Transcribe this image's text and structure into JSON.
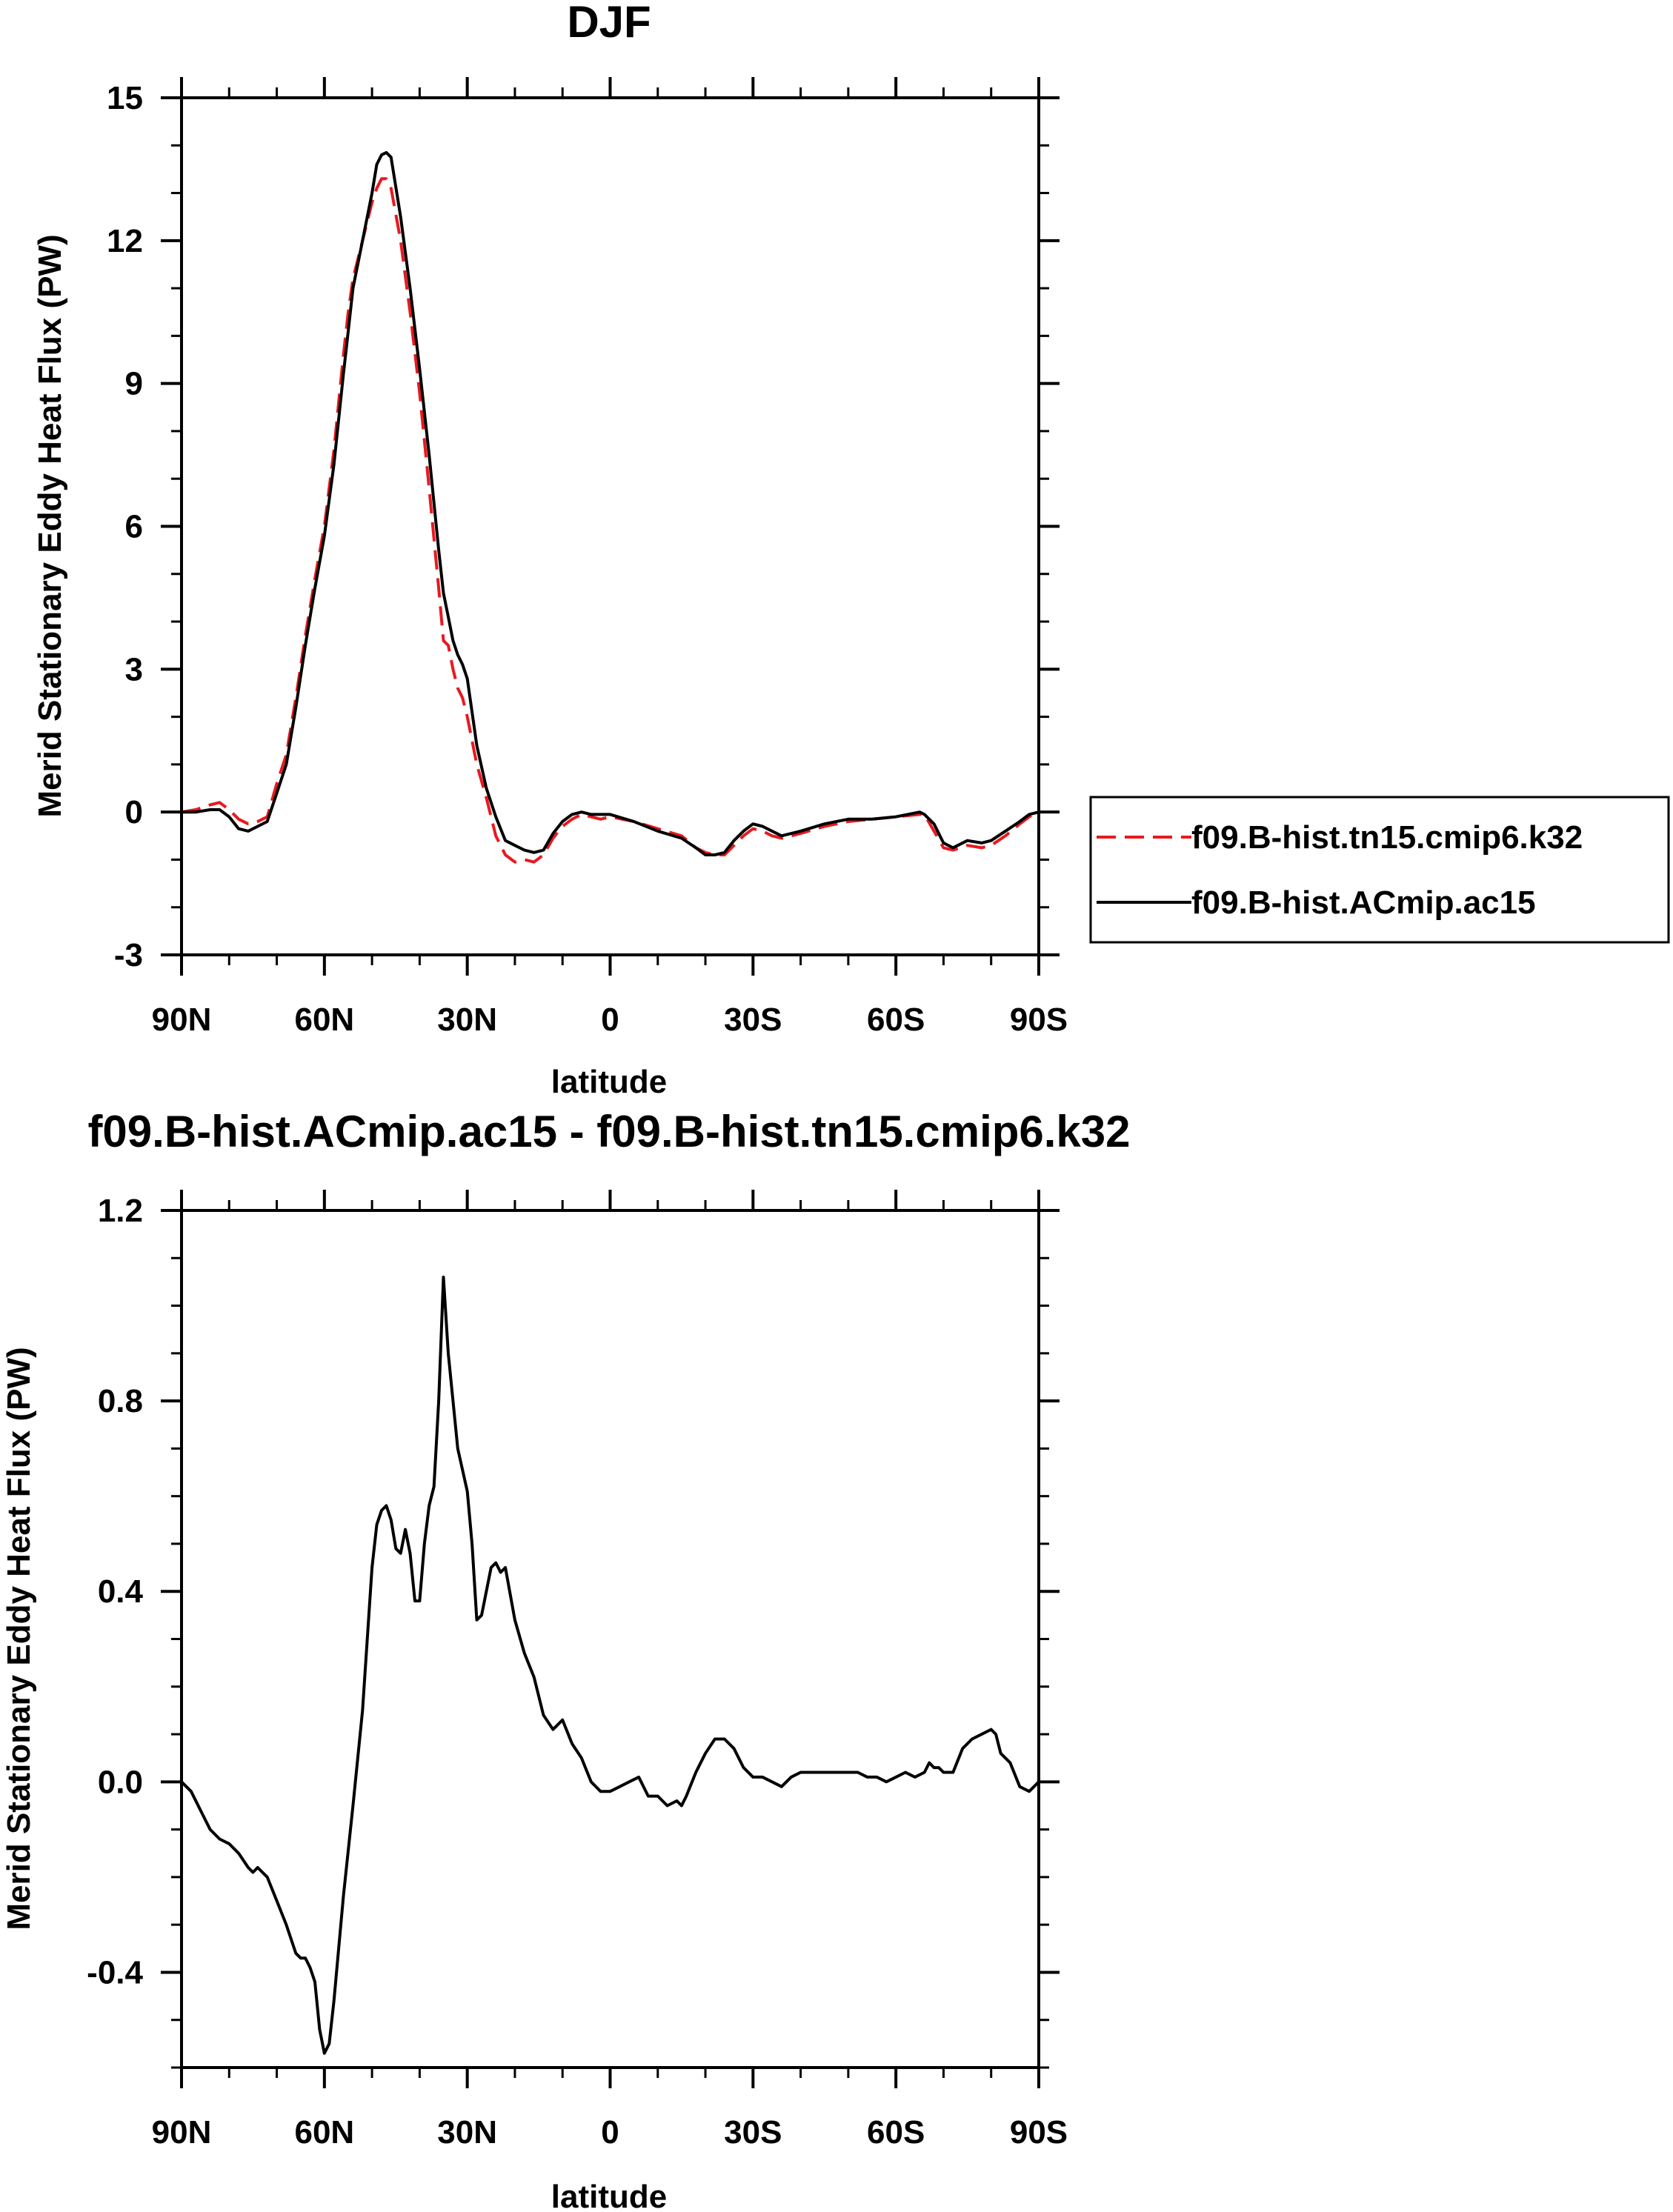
{
  "chart_data": [
    {
      "type": "line",
      "title": "DJF",
      "xlabel": "latitude",
      "ylabel": "Merid Stationary Eddy Heat Flux (PW)",
      "xlim": [
        90,
        -90
      ],
      "ylim": [
        -3,
        15
      ],
      "yticks": [
        -3,
        0,
        3,
        6,
        9,
        12,
        15
      ],
      "ytick_labels": [
        "-3",
        "0",
        "3",
        "6",
        "9",
        "12",
        "15"
      ],
      "xticks": [
        90,
        60,
        30,
        0,
        -30,
        -60,
        -90
      ],
      "xtick_labels": [
        "90N",
        "60N",
        "30N",
        "0",
        "30S",
        "60S",
        "90S"
      ],
      "grid": false,
      "legend_position": "right",
      "x_units": "latitude in degrees (positive = N, negative = S)",
      "series": [
        {
          "name": "f09.B-hist.tn15.cmip6.k32",
          "color": "#e8191e",
          "style": "dashed",
          "x": [
            90,
            87,
            84,
            82,
            80,
            78,
            76,
            74,
            72,
            70,
            68,
            66,
            64,
            62,
            60,
            58,
            56,
            55,
            54,
            52,
            50,
            49,
            48,
            47,
            46,
            44,
            42,
            40,
            38,
            36,
            35,
            34,
            33,
            32,
            31,
            30,
            28,
            26,
            24,
            22,
            20,
            18,
            16,
            14,
            12,
            10,
            8,
            6,
            4,
            2,
            0,
            -5,
            -10,
            -15,
            -18,
            -20,
            -22,
            -24,
            -26,
            -28,
            -30,
            -32,
            -34,
            -36,
            -40,
            -45,
            -50,
            -55,
            -60,
            -65,
            -66,
            -68,
            -70,
            -72,
            -75,
            -78,
            -80,
            -83,
            -86,
            -88,
            -90
          ],
          "y": [
            0.0,
            0.05,
            0.15,
            0.2,
            0.05,
            -0.15,
            -0.25,
            -0.2,
            -0.1,
            0.6,
            1.2,
            2.4,
            3.7,
            4.9,
            6.0,
            7.6,
            9.6,
            10.5,
            11.2,
            12.0,
            12.8,
            13.1,
            13.3,
            13.3,
            13.1,
            12.0,
            10.5,
            8.8,
            6.8,
            4.7,
            3.6,
            3.5,
            3.0,
            2.6,
            2.4,
            2.0,
            1.0,
            0.3,
            -0.5,
            -0.9,
            -1.05,
            -1.0,
            -1.05,
            -0.9,
            -0.55,
            -0.3,
            -0.15,
            -0.05,
            -0.1,
            -0.15,
            -0.1,
            -0.2,
            -0.35,
            -0.5,
            -0.75,
            -0.85,
            -0.9,
            -0.9,
            -0.7,
            -0.5,
            -0.35,
            -0.4,
            -0.5,
            -0.55,
            -0.45,
            -0.3,
            -0.2,
            -0.15,
            -0.1,
            -0.05,
            -0.05,
            -0.4,
            -0.75,
            -0.8,
            -0.7,
            -0.75,
            -0.7,
            -0.5,
            -0.25,
            -0.1,
            0.0
          ]
        },
        {
          "name": "f09.B-hist.ACmip.ac15",
          "color": "#000000",
          "style": "solid",
          "x": [
            90,
            87,
            84,
            82,
            80,
            78,
            76,
            74,
            72,
            70,
            68,
            66,
            64,
            62,
            60,
            58,
            56,
            55,
            54,
            52,
            50,
            49,
            48,
            47,
            46,
            44,
            42,
            40,
            38,
            36,
            35,
            34,
            33,
            32,
            31,
            30,
            28,
            26,
            24,
            22,
            20,
            18,
            16,
            14,
            12,
            10,
            8,
            6,
            4,
            2,
            0,
            -5,
            -10,
            -15,
            -18,
            -20,
            -22,
            -24,
            -26,
            -28,
            -30,
            -32,
            -34,
            -36,
            -40,
            -45,
            -50,
            -55,
            -60,
            -65,
            -66,
            -68,
            -70,
            -72,
            -75,
            -78,
            -80,
            -83,
            -86,
            -88,
            -90
          ],
          "y": [
            0.0,
            0.0,
            0.05,
            0.05,
            -0.1,
            -0.35,
            -0.4,
            -0.3,
            -0.2,
            0.4,
            1.0,
            2.2,
            3.5,
            4.7,
            5.8,
            7.3,
            9.2,
            10.1,
            11.0,
            12.0,
            13.0,
            13.6,
            13.8,
            13.85,
            13.75,
            12.5,
            11.0,
            9.3,
            7.5,
            5.5,
            4.6,
            4.1,
            3.6,
            3.3,
            3.1,
            2.8,
            1.4,
            0.5,
            -0.1,
            -0.6,
            -0.7,
            -0.8,
            -0.85,
            -0.8,
            -0.45,
            -0.2,
            -0.05,
            0.0,
            -0.05,
            -0.05,
            -0.05,
            -0.2,
            -0.4,
            -0.55,
            -0.75,
            -0.9,
            -0.9,
            -0.85,
            -0.6,
            -0.4,
            -0.25,
            -0.3,
            -0.4,
            -0.5,
            -0.4,
            -0.25,
            -0.15,
            -0.15,
            -0.1,
            0.0,
            -0.05,
            -0.25,
            -0.65,
            -0.75,
            -0.6,
            -0.65,
            -0.6,
            -0.4,
            -0.2,
            -0.05,
            0.0
          ]
        }
      ]
    },
    {
      "type": "line",
      "title": "f09.B-hist.ACmip.ac15 - f09.B-hist.tn15.cmip6.k32",
      "xlabel": "latitude",
      "ylabel": "Merid Stationary Eddy Heat Flux (PW)",
      "xlim": [
        90,
        -90
      ],
      "ylim": [
        -0.6,
        1.2
      ],
      "yticks": [
        -0.4,
        0.0,
        0.4,
        0.8,
        1.2
      ],
      "ytick_labels": [
        "-0.4",
        "0.0",
        "0.4",
        "0.8",
        "1.2"
      ],
      "xticks": [
        90,
        60,
        30,
        0,
        -30,
        -60,
        -90
      ],
      "xtick_labels": [
        "90N",
        "60N",
        "30N",
        "0",
        "30S",
        "60S",
        "90S"
      ],
      "grid": false,
      "x_units": "latitude in degrees (positive = N, negative = S)",
      "series": [
        {
          "color": "#000000",
          "style": "solid",
          "x": [
            90,
            88,
            86,
            84,
            82,
            80,
            78,
            76,
            75,
            74,
            72,
            70,
            68,
            66,
            65,
            64,
            63,
            62,
            61,
            60,
            59,
            58,
            56,
            54,
            52,
            50,
            49,
            48,
            47,
            46,
            45,
            44,
            43,
            42,
            41,
            40,
            39,
            38,
            37,
            36,
            35,
            34,
            33,
            32,
            30,
            29,
            28,
            27,
            26,
            25,
            24,
            23,
            22,
            20,
            18,
            16,
            14,
            12,
            10,
            8,
            6,
            4,
            2,
            0,
            -2,
            -4,
            -6,
            -8,
            -10,
            -12,
            -14,
            -15,
            -16,
            -18,
            -20,
            -22,
            -24,
            -26,
            -28,
            -30,
            -32,
            -34,
            -36,
            -38,
            -40,
            -42,
            -44,
            -46,
            -48,
            -50,
            -52,
            -54,
            -56,
            -58,
            -60,
            -62,
            -64,
            -66,
            -67,
            -68,
            -69,
            -70,
            -72,
            -74,
            -76,
            -78,
            -80,
            -81,
            -82,
            -84,
            -86,
            -88,
            -90
          ],
          "y": [
            0.0,
            -0.02,
            -0.06,
            -0.1,
            -0.12,
            -0.13,
            -0.15,
            -0.18,
            -0.19,
            -0.18,
            -0.2,
            -0.25,
            -0.3,
            -0.36,
            -0.37,
            -0.37,
            -0.39,
            -0.42,
            -0.52,
            -0.57,
            -0.55,
            -0.46,
            -0.24,
            -0.05,
            0.15,
            0.45,
            0.54,
            0.57,
            0.58,
            0.55,
            0.49,
            0.48,
            0.53,
            0.48,
            0.38,
            0.38,
            0.5,
            0.58,
            0.62,
            0.8,
            1.06,
            0.9,
            0.8,
            0.7,
            0.61,
            0.5,
            0.34,
            0.35,
            0.4,
            0.45,
            0.46,
            0.44,
            0.45,
            0.34,
            0.27,
            0.22,
            0.14,
            0.11,
            0.13,
            0.08,
            0.05,
            0.0,
            -0.02,
            -0.02,
            -0.01,
            0.0,
            0.01,
            -0.03,
            -0.03,
            -0.05,
            -0.04,
            -0.05,
            -0.03,
            0.02,
            0.06,
            0.09,
            0.09,
            0.07,
            0.03,
            0.01,
            0.01,
            0.0,
            -0.01,
            0.01,
            0.02,
            0.02,
            0.02,
            0.02,
            0.02,
            0.02,
            0.02,
            0.01,
            0.01,
            0.0,
            0.01,
            0.02,
            0.01,
            0.02,
            0.04,
            0.03,
            0.03,
            0.02,
            0.02,
            0.07,
            0.09,
            0.1,
            0.11,
            0.1,
            0.06,
            0.04,
            -0.01,
            -0.02,
            0.0
          ]
        }
      ]
    }
  ]
}
